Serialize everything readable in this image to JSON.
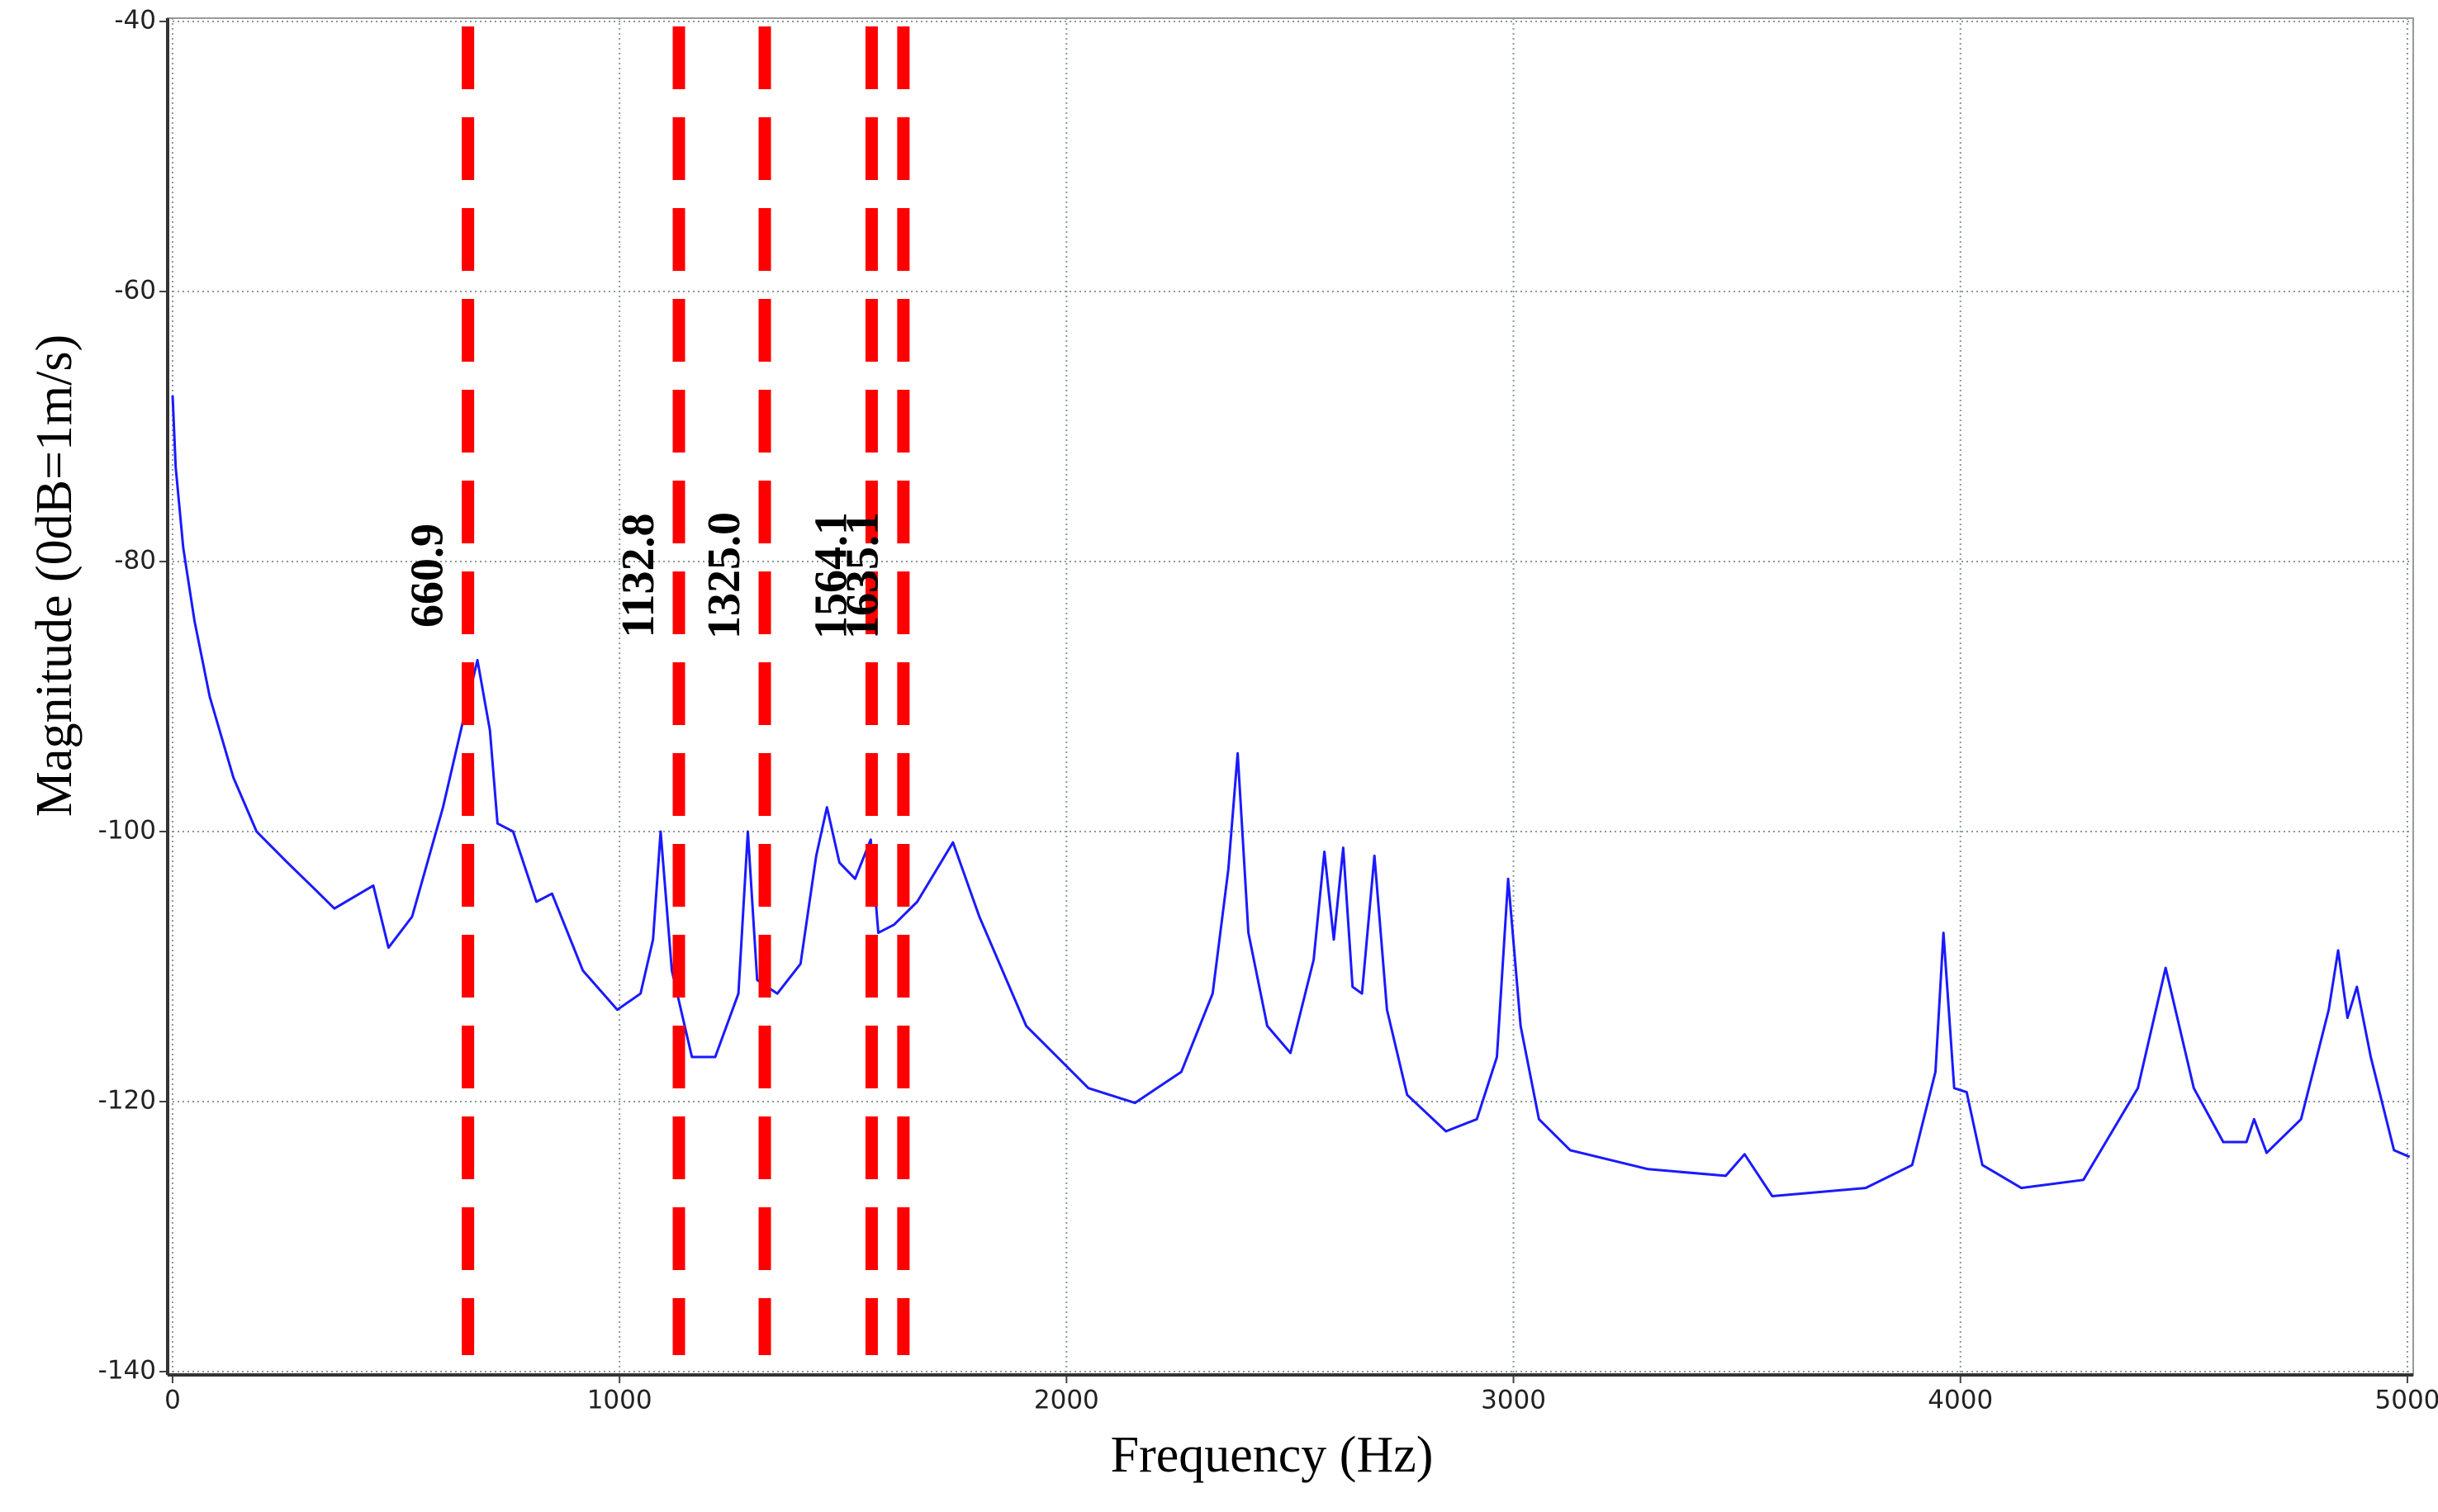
{
  "chart_data": {
    "type": "line",
    "xlabel": "Frequency (Hz)",
    "ylabel": "Magnitude (0dB=1m/s)",
    "x": [
      0,
      7,
      24,
      49,
      83,
      136,
      188,
      257,
      310,
      362,
      449,
      483,
      536,
      605,
      657,
      682,
      710,
      727,
      762,
      814,
      849,
      918,
      995,
      1047,
      1075,
      1092,
      1117,
      1162,
      1214,
      1266,
      1287,
      1308,
      1353,
      1405,
      1440,
      1464,
      1492,
      1527,
      1562,
      1579,
      1614,
      1666,
      1746,
      1805,
      1910,
      2049,
      2153,
      2257,
      2327,
      2362,
      2383,
      2407,
      2449,
      2501,
      2553,
      2577,
      2598,
      2619,
      2640,
      2661,
      2689,
      2717,
      2762,
      2849,
      2918,
      2963,
      2988,
      3016,
      3057,
      3127,
      3301,
      3475,
      3517,
      3579,
      3788,
      3892,
      3944,
      3962,
      3986,
      4014,
      4049,
      4136,
      4275,
      4397,
      4459,
      4522,
      4588,
      4640,
      4657,
      4685,
      4762,
      4824,
      4845,
      4866,
      4887,
      4918,
      4970,
      5005
    ],
    "values": [
      -67.7,
      -73,
      -79,
      -84.4,
      -90,
      -96,
      -100,
      -102.3,
      -104,
      -105.7,
      -104,
      -108.6,
      -106.3,
      -98.2,
      -90.8,
      -87.3,
      -92.5,
      -99.4,
      -100,
      -105.2,
      -104.6,
      -110.3,
      -113.2,
      -112,
      -108,
      -100,
      -110.3,
      -116.7,
      -116.7,
      -112,
      -100,
      -111,
      -112,
      -109.8,
      -101.8,
      -98.2,
      -102.3,
      -103.5,
      -100.6,
      -107.5,
      -106.9,
      -105.2,
      -100.8,
      -106.3,
      -114.4,
      -119,
      -120.1,
      -117.8,
      -112,
      -102.8,
      -94.2,
      -107.5,
      -114.4,
      -116.4,
      -109.5,
      -101.5,
      -108,
      -101.2,
      -111.5,
      -112,
      -101.8,
      -113.2,
      -119.5,
      -122.2,
      -121.3,
      -116.7,
      -103.5,
      -114.4,
      -121.3,
      -123.6,
      -125,
      -125.5,
      -123.9,
      -127,
      -126.4,
      -124.7,
      -117.8,
      -107.5,
      -119,
      -119.3,
      -124.7,
      -126.4,
      -125.8,
      -119,
      -110.1,
      -119,
      -123,
      -123,
      -121.3,
      -123.8,
      -121.3,
      -113.2,
      -108.8,
      -113.8,
      -111.5,
      -116.7,
      -123.6,
      -124.1
    ],
    "color": "#1a1aff",
    "xlim": [
      -11,
      5013
    ],
    "ylim": [
      -140,
      -40
    ],
    "xticks": [
      0,
      1000,
      2000,
      3000,
      4000,
      5000
    ],
    "yticks": [
      -140,
      -120,
      -100,
      -80,
      -60,
      -40
    ],
    "grid": true,
    "vlines": [
      660.9,
      1132.8,
      {
        "value": 1325,
        "label": "1325.0"
      },
      1564.1,
      1635.1
    ],
    "vline_color": "#ff0000"
  }
}
